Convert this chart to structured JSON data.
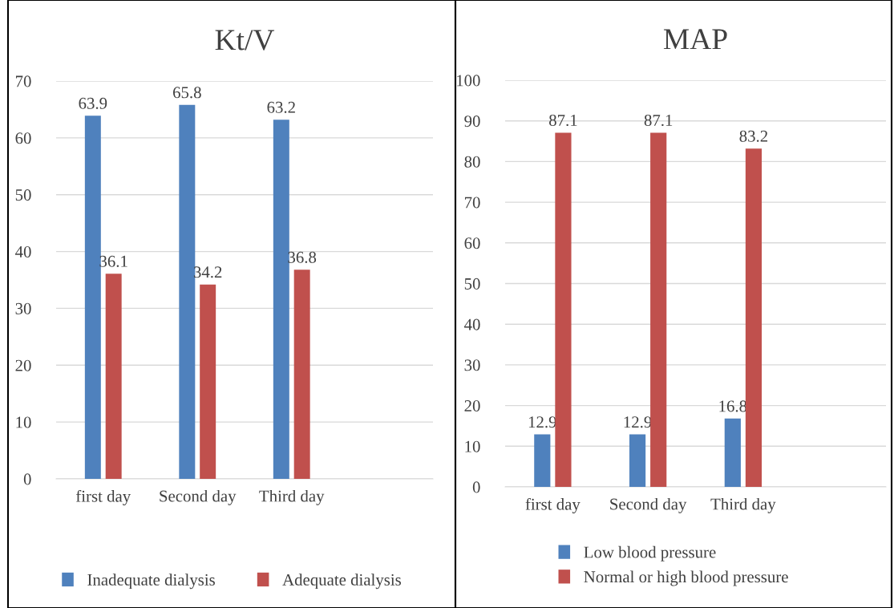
{
  "chart_data": [
    {
      "type": "bar",
      "title": "Kt/V",
      "categories": [
        "first day",
        "Second day",
        "Third day",
        null
      ],
      "series": [
        {
          "name": "Inadequate dialysis",
          "color": "#4f81bd",
          "values": [
            63.9,
            65.8,
            63.2,
            null
          ]
        },
        {
          "name": "Adequate dialysis",
          "color": "#c0504d",
          "values": [
            36.1,
            34.2,
            36.8,
            null
          ]
        }
      ],
      "ylim": [
        0,
        70
      ],
      "yticks": [
        0,
        10,
        20,
        30,
        40,
        50,
        60,
        70
      ],
      "grid": "y",
      "legend": "bottom",
      "data_labels": true
    },
    {
      "type": "bar",
      "title": "MAP",
      "categories": [
        "first day",
        "Second day",
        "Third day",
        null
      ],
      "series": [
        {
          "name": "Low blood pressure",
          "color": "#4f81bd",
          "values": [
            12.9,
            12.9,
            16.8,
            null
          ]
        },
        {
          "name": "Normal or high blood pressure",
          "color": "#c0504d",
          "values": [
            87.1,
            87.1,
            83.2,
            null
          ]
        }
      ],
      "ylim": [
        0,
        100
      ],
      "yticks": [
        0,
        10,
        20,
        30,
        40,
        50,
        60,
        70,
        80,
        90,
        100
      ],
      "grid": "y",
      "legend": "bottom",
      "data_labels": true
    }
  ]
}
